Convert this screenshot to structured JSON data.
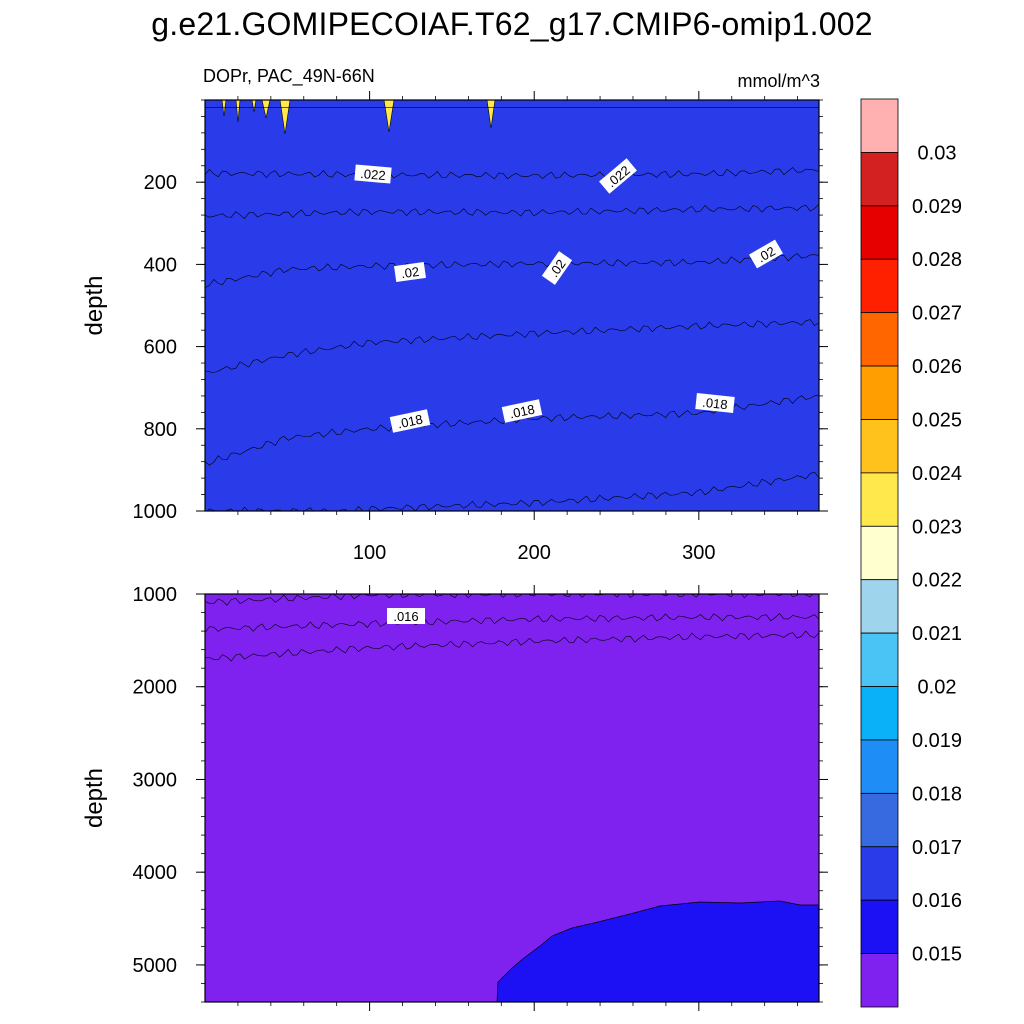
{
  "title": "g.e21.GOMIPECOIAF.T62_g17.CMIP6-omip1.002",
  "chart_data": {
    "type": "heatmap",
    "variable": "DOPr, PAC_49N-66N",
    "units": "mmol/m^3",
    "colorbar": {
      "levels": [
        "0.015",
        "0.016",
        "0.017",
        "0.018",
        "0.019",
        "0.02",
        "0.021",
        "0.022",
        "0.023",
        "0.024",
        "0.025",
        "0.026",
        "0.027",
        "0.028",
        "0.029",
        "0.03"
      ],
      "colors": [
        "#7f22ef",
        "#1c10f5",
        "#2a3cea",
        "#376ae0",
        "#1e8df5",
        "#0ab0f8",
        "#4ac3f5",
        "#9fd5ec",
        "#ffffd0",
        "#ffe84c",
        "#ffc21c",
        "#ff9e00",
        "#ff6600",
        "#ff2000",
        "#e60000",
        "#d32020",
        "#ffb0b0"
      ]
    },
    "panels": [
      {
        "name": "upper",
        "xlim": [
          0,
          373
        ],
        "ylim": [
          0,
          1000
        ],
        "ylabel": "depth",
        "x_ticks": [
          "100",
          "200",
          "300"
        ],
        "y_ticks": [
          "200",
          "400",
          "600",
          "800",
          "1000"
        ],
        "contour_labels": [
          ".022",
          ".022",
          ".02",
          ".02",
          ".02",
          ".018",
          ".018",
          ".018"
        ],
        "boundaries": [
          {
            "level": 0.0225,
            "x": [
              0,
              373
            ],
            "y": [
              18,
              18
            ]
          },
          {
            "level": 0.022,
            "x": [
              0,
              100,
              200,
              300,
              373
            ],
            "y": [
              178,
              182,
              184,
              180,
              170
            ]
          },
          {
            "level": 0.021,
            "x": [
              0,
              100,
              200,
              300,
              373
            ],
            "y": [
              282,
              272,
              274,
              266,
              262
            ]
          },
          {
            "level": 0.02,
            "x": [
              0,
              50,
              100,
              200,
              300,
              373
            ],
            "y": [
              450,
              412,
              404,
              398,
              395,
              378
            ]
          },
          {
            "level": 0.019,
            "x": [
              0,
              50,
              100,
              200,
              300,
              373
            ],
            "y": [
              665,
              620,
              590,
              568,
              550,
              540
            ]
          },
          {
            "level": 0.018,
            "x": [
              0,
              50,
              100,
              200,
              300,
              373
            ],
            "y": [
              885,
              822,
              800,
              775,
              762,
              720
            ]
          },
          {
            "level": 0.017,
            "x": [
              0,
              90,
              100,
              200,
              300,
              373
            ],
            "y": [
              1000,
              1000,
              995,
              980,
              955,
              910
            ]
          }
        ]
      },
      {
        "name": "lower",
        "xlim": [
          0,
          373
        ],
        "ylim": [
          1000,
          5400
        ],
        "ylabel": "depth",
        "x_ticks": [
          "",
          "",
          ""
        ],
        "y_ticks": [
          "1000",
          "2000",
          "3000",
          "4000",
          "5000"
        ],
        "contour_labels": [
          ".016"
        ],
        "boundaries": [
          {
            "level": 0.017,
            "x": [
              0,
              100,
              200,
              300,
              373
            ],
            "y": [
              1090,
              1010,
              1000,
              1000,
              1000
            ]
          },
          {
            "level": 0.016,
            "x": [
              0,
              100,
              200,
              300,
              373
            ],
            "y": [
              1380,
              1320,
              1270,
              1250,
              1250
            ]
          },
          {
            "level": 0.015,
            "x": [
              0,
              100,
              200,
              300,
              373
            ],
            "y": [
              1700,
              1580,
              1510,
              1460,
              1440
            ]
          }
        ]
      }
    ]
  }
}
